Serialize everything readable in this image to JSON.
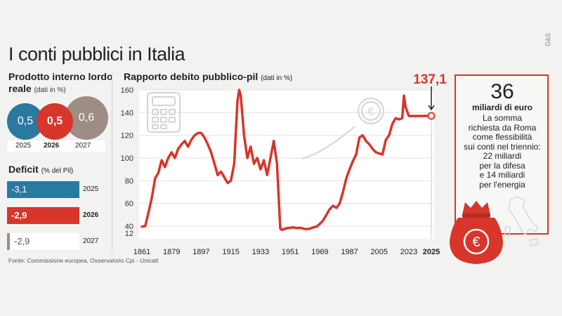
{
  "title": "I conti pubblici in Italia",
  "watermark": "G&S",
  "gdp": {
    "title": "Prodotto interno lordo reale",
    "unit": "(dati in %)",
    "items": [
      {
        "year": "2025",
        "value": "0,5",
        "color": "#2a7aa0"
      },
      {
        "year": "2026",
        "value": "0,5",
        "color": "#d8352b"
      },
      {
        "year": "2027",
        "value": "0,6",
        "color": "#9d8d85"
      }
    ]
  },
  "deficit": {
    "title": "Deficit",
    "unit": "(% del Pil)",
    "items": [
      {
        "year": "2025",
        "value": "-3,1"
      },
      {
        "year": "2026",
        "value": "-2,9"
      },
      {
        "year": "2027",
        "value": "-2,9"
      }
    ]
  },
  "source": "Fonte: Commissione europea, Osservatorio Cpi - Unicatt",
  "chart_data": {
    "type": "line",
    "title": "Rapporto debito pubblico-pil",
    "subtitle": "(dati in %)",
    "xlabel": "",
    "ylabel": "",
    "x_ticks": [
      "1861",
      "1879",
      "1897",
      "1915",
      "1933",
      "1951",
      "1969",
      "1987",
      "2005",
      "2023",
      "2025"
    ],
    "y_ticks": [
      12,
      40,
      60,
      80,
      100,
      120,
      140,
      160
    ],
    "xlim": [
      1861,
      2025
    ],
    "ylim": [
      12,
      160
    ],
    "grid": true,
    "color": "#d8352b",
    "annotation": {
      "year": 2025,
      "value": 137.1,
      "label": "137,1"
    },
    "x": [
      1861,
      1863,
      1865,
      1867,
      1869,
      1871,
      1873,
      1875,
      1877,
      1879,
      1881,
      1883,
      1885,
      1887,
      1889,
      1891,
      1893,
      1895,
      1897,
      1899,
      1901,
      1903,
      1905,
      1907,
      1909,
      1911,
      1913,
      1915,
      1917,
      1919,
      1920,
      1921,
      1923,
      1925,
      1927,
      1929,
      1931,
      1933,
      1935,
      1937,
      1939,
      1941,
      1943,
      1945,
      1946,
      1947,
      1949,
      1951,
      1953,
      1955,
      1957,
      1959,
      1961,
      1963,
      1965,
      1967,
      1969,
      1971,
      1973,
      1975,
      1977,
      1979,
      1981,
      1983,
      1985,
      1987,
      1989,
      1991,
      1993,
      1995,
      1997,
      1999,
      2001,
      2003,
      2005,
      2007,
      2009,
      2011,
      2013,
      2015,
      2017,
      2019,
      2020,
      2021,
      2023,
      2025
    ],
    "y": [
      38,
      40,
      52,
      65,
      82,
      87,
      98,
      92,
      100,
      105,
      100,
      108,
      112,
      115,
      110,
      116,
      120,
      122,
      122,
      118,
      112,
      105,
      95,
      85,
      88,
      83,
      78,
      80,
      95,
      150,
      160,
      155,
      120,
      100,
      110,
      95,
      100,
      90,
      98,
      85,
      100,
      115,
      95,
      30,
      25,
      28,
      32,
      33,
      35,
      32,
      33,
      30,
      28,
      30,
      35,
      38,
      42,
      45,
      50,
      55,
      58,
      56,
      60,
      70,
      82,
      90,
      97,
      103,
      118,
      120,
      115,
      112,
      108,
      105,
      104,
      103,
      116,
      120,
      130,
      135,
      134,
      135,
      155,
      145,
      137,
      137.1
    ]
  },
  "info": {
    "big_number": "36",
    "big_label": "miliardi di euro",
    "lines": [
      "La somma",
      "richiesta da Roma",
      "come flessibilità",
      "sui conti nel triennio:",
      "22 miliardi",
      "per la difesa",
      "e 14 miliardi",
      "per l'energia"
    ]
  }
}
